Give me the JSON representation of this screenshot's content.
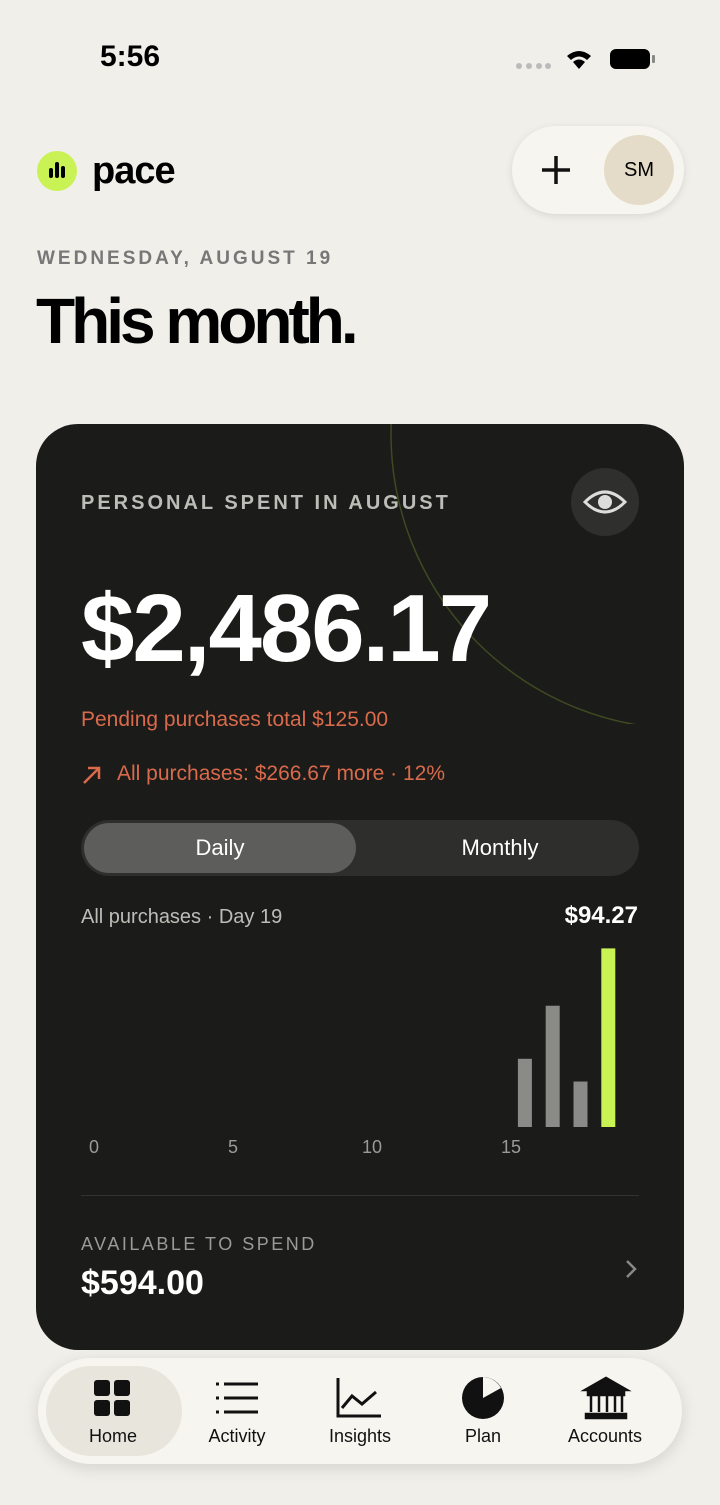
{
  "status_bar": {
    "time": "5:56"
  },
  "header": {
    "app_name": "pace",
    "avatar": "SM",
    "date": "WEDNESDAY, AUGUST 19",
    "title": "This month."
  },
  "card": {
    "label": "PERSONAL SPENT IN AUGUST",
    "amount": "$2,486.17",
    "pending": "Pending purchases total $125.00",
    "trend": "All purchases: $266.67 more · 12%",
    "toggle": [
      "Daily",
      "Monthly"
    ],
    "available_label": "AVAILABLE TO SPEND",
    "available_amount": "$594.00"
  },
  "chart_data": {
    "type": "bar",
    "subtitle": "All purchases · Day 19",
    "selected_label": "$94.27",
    "x": [
      16,
      17,
      18,
      19
    ],
    "values": [
      36,
      64,
      24,
      94.27
    ],
    "colors": [
      "#8a8a86",
      "#8a8a86",
      "#8a8a86",
      "#c9f255"
    ],
    "xlim": [
      0,
      19
    ],
    "xticks": [
      0,
      5,
      10,
      15
    ],
    "ylim": [
      0,
      95
    ]
  },
  "nav": [
    "Home",
    "Activity",
    "Insights",
    "Plan",
    "Accounts"
  ]
}
